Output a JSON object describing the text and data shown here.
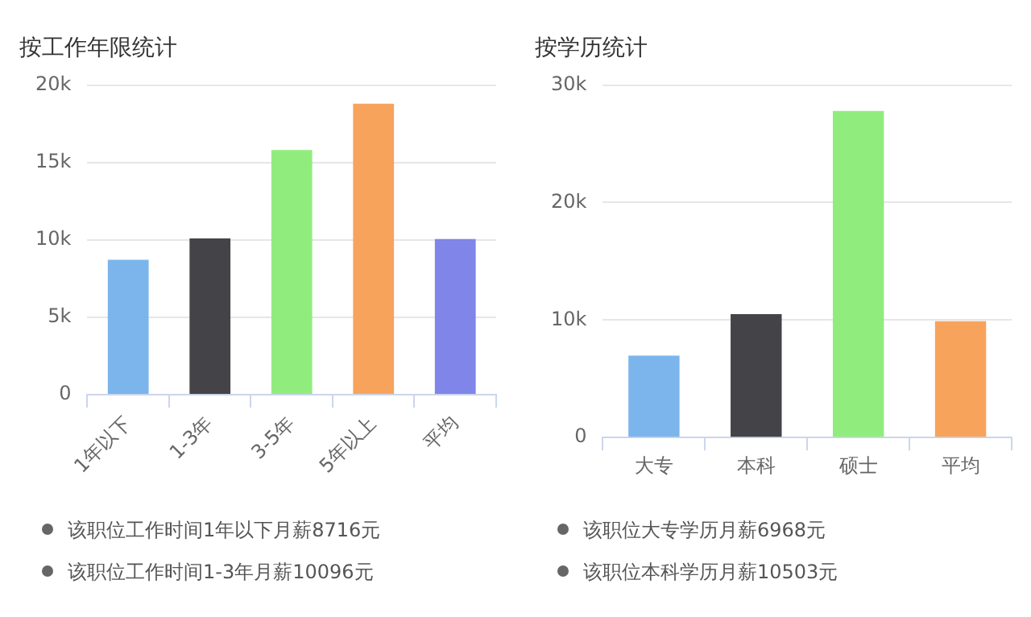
{
  "chart_data": [
    {
      "type": "bar",
      "title": "按工作年限统计",
      "categories": [
        "1年以下",
        "1-3年",
        "3-5年",
        "5年以上",
        "平均"
      ],
      "values": [
        8716,
        10096,
        15800,
        18800,
        10050
      ],
      "colors": [
        "#7cb5ec",
        "#434348",
        "#90ed7d",
        "#f7a35c",
        "#8085e9"
      ],
      "ylim": [
        0,
        20000
      ],
      "yticks": [
        {
          "value": 0,
          "label": "0"
        },
        {
          "value": 5000,
          "label": "5k"
        },
        {
          "value": 10000,
          "label": "10k"
        },
        {
          "value": 15000,
          "label": "15k"
        },
        {
          "value": 20000,
          "label": "20k"
        }
      ],
      "grid": "y",
      "legend": false,
      "annotations": [
        "该职位工作时间1年以下月薪8716元",
        "该职位工作时间1-3年月薪10096元"
      ]
    },
    {
      "type": "bar",
      "title": "按学历统计",
      "categories": [
        "大专",
        "本科",
        "硕士",
        "平均"
      ],
      "values": [
        6968,
        10503,
        27800,
        9900
      ],
      "colors": [
        "#7cb5ec",
        "#434348",
        "#90ed7d",
        "#f7a35c"
      ],
      "ylim": [
        0,
        30000
      ],
      "yticks": [
        {
          "value": 0,
          "label": "0"
        },
        {
          "value": 10000,
          "label": "10k"
        },
        {
          "value": 20000,
          "label": "20k"
        },
        {
          "value": 30000,
          "label": "30k"
        }
      ],
      "grid": "y",
      "legend": false,
      "annotations": [
        "该职位大专学历月薪6968元",
        "该职位本科学历月薪10503元"
      ]
    }
  ]
}
